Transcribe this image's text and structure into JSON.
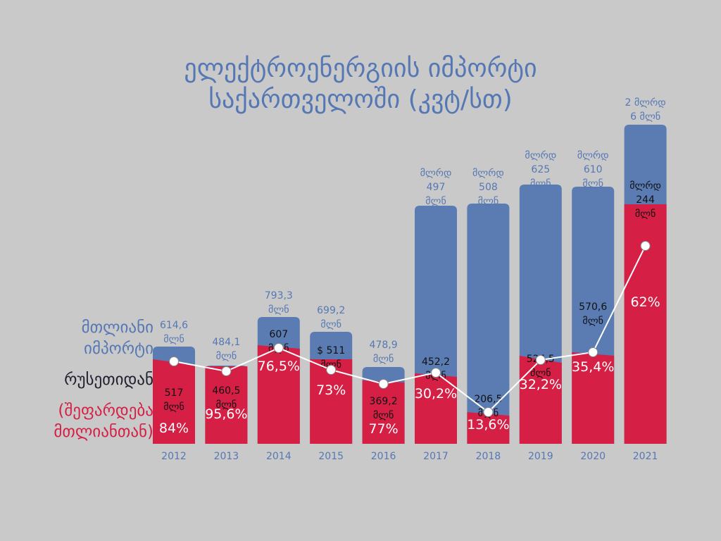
{
  "title_line1": "ელექტროენერგიის იმპორტი",
  "title_line2": "საქართველოში (კვტ/სთ)",
  "legend": {
    "total_line1": "მთლიანი",
    "total_line2": "იმპორტი",
    "russia": "რუსეთიდან",
    "share_line1": "(შეფარდება",
    "share_line2": "მთლიანთან)"
  },
  "colors": {
    "background": "#c9c9c9",
    "total": "#5a7cb3",
    "russia": "#d51f45",
    "line": "#ffffff",
    "title": "#5578b4"
  },
  "chart_data": {
    "type": "bar",
    "categories": [
      "2012",
      "2013",
      "2014",
      "2015",
      "2016",
      "2017",
      "2018",
      "2019",
      "2020",
      "2021"
    ],
    "series": [
      {
        "values": [
          614.6,
          484.1,
          793.3,
          699.2,
          478.9,
          1497,
          1508,
          1625,
          1610,
          2006
        ]
      },
      {
        "values": [
          517,
          460.5,
          607,
          511,
          369.2,
          452.2,
          206.5,
          524.5,
          570.6,
          1244
        ]
      },
      {
        "values": [
          84,
          95.6,
          76.5,
          73,
          77,
          30.2,
          13.6,
          32.2,
          35.4,
          62
        ]
      }
    ],
    "total_labels": [
      [
        "614,6",
        "მლნ"
      ],
      [
        "484,1",
        "მლნ"
      ],
      [
        "793,3",
        "მლნ"
      ],
      [
        "699,2",
        "მლნ"
      ],
      [
        "478,9",
        "მლნ"
      ],
      [
        "მლრდ",
        "497",
        "მლნ"
      ],
      [
        "მლრდ",
        "508",
        "მლნ"
      ],
      [
        "მლრდ",
        "625",
        "მლნ"
      ],
      [
        "მლრდ",
        "610",
        "მლნ"
      ],
      [
        "2 მლრდ",
        "6 მლნ"
      ]
    ],
    "russia_labels": [
      [
        "517",
        "მლნ"
      ],
      [
        "460,5",
        "მლნ"
      ],
      [
        "607",
        "მლნ"
      ],
      [
        "$ 511",
        "მლნ"
      ],
      [
        "369,2",
        "მლნ"
      ],
      [
        "452,2",
        "მლნ"
      ],
      [
        "206,5",
        "მლნ"
      ],
      [
        "524,5",
        "მლნ"
      ],
      [
        "570,6",
        "მლნ"
      ],
      [
        "მლრდ",
        "244",
        "მლნ"
      ]
    ],
    "share_labels": [
      "84%",
      "95,6%",
      "76,5%",
      "73%",
      "77%",
      "30,2%",
      "13,6%",
      "32,2%",
      "35,4%",
      "62%"
    ]
  }
}
